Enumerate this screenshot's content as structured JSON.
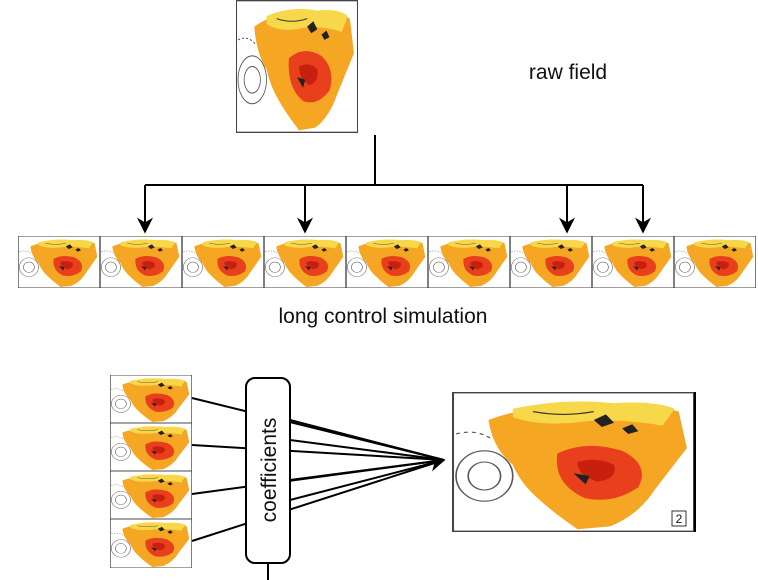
{
  "raw_field_label": "raw field",
  "simulation_label": "long control simulation",
  "coefficients_label": "coefficients",
  "panel_number": "2"
}
